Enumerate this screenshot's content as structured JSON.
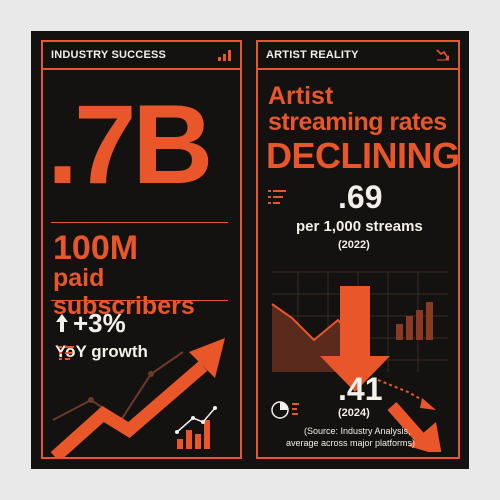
{
  "left": {
    "header": "INDUSTRY SUCCESS",
    "headline_value": ".7B",
    "subscribers_value": "100M",
    "subscribers_label": "paid subscribers",
    "growth_value": "+3%",
    "growth_label": "YoY growth"
  },
  "right": {
    "header": "ARTIST REALITY",
    "title_line1": "Artist",
    "title_line2": "streaming rates",
    "title_line3": "DECLINING",
    "rate_2022_value": ".69",
    "rate_unit": "per 1,000 streams",
    "rate_2022_year": "(2022)",
    "rate_2024_value": ".41",
    "rate_2024_year": "(2024)",
    "source_line1": "(Source: Industry Analysis,",
    "source_line2": "average across major platforms)"
  },
  "colors": {
    "accent": "#e8562a",
    "background": "#141210",
    "text": "#f3efe9",
    "frame": "#e9e9e9"
  },
  "icons": [
    "bar-chart-icon",
    "trend-down-icon",
    "up-arrow-icon",
    "list-icon",
    "pie-chart-icon",
    "growth-arrow",
    "decline-arrow",
    "down-arrow"
  ]
}
